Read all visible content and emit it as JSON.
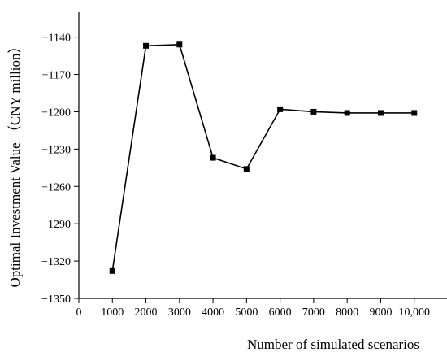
{
  "chart_data": {
    "type": "line",
    "xlabel": "Number of simulated scenarios",
    "ylabel": "Optimal Investment Value （CNY million）",
    "xlim": [
      0,
      11000
    ],
    "ylim": [
      -1350,
      -1120
    ],
    "xticks": [
      0,
      1000,
      2000,
      3000,
      4000,
      5000,
      6000,
      7000,
      8000,
      9000,
      10000
    ],
    "xtick_labels": [
      "0",
      "1000",
      "2000",
      "3000",
      "4000",
      "5000",
      "6000",
      "7000",
      "8000",
      "9000",
      "10,000"
    ],
    "yticks": [
      -1350,
      -1320,
      -1290,
      -1260,
      -1230,
      -1200,
      -1170,
      -1140
    ],
    "ytick_labels": [
      "−1350",
      "−1320",
      "−1290",
      "−1260",
      "−1230",
      "−1200",
      "−1170",
      "−1140"
    ],
    "grid": false,
    "series": [
      {
        "color": "#000000",
        "marker": "square",
        "x": [
          1000,
          2000,
          3000,
          4000,
          5000,
          6000,
          7000,
          8000,
          9000,
          10000
        ],
        "y": [
          -1328,
          -1147,
          -1146,
          -1237,
          -1246,
          -1198,
          -1200,
          -1201,
          -1201,
          -1201
        ]
      }
    ]
  }
}
